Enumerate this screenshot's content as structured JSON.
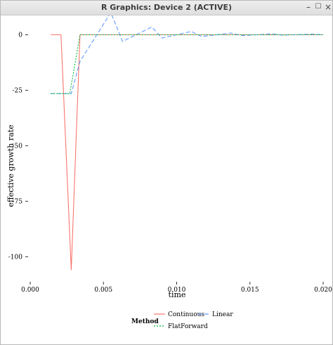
{
  "window": {
    "title": "R Graphics: Device 2 (ACTIVE)",
    "buttons": {
      "minimize": "–",
      "maximize": "☐",
      "close": "×"
    }
  },
  "chart_data": {
    "type": "line",
    "title": "",
    "xlabel": "time",
    "ylabel": "effective growth rate",
    "xlim": [
      0.0,
      0.02
    ],
    "ylim": [
      -110,
      3
    ],
    "grid": false,
    "legend_position": "bottom",
    "x_ticks": [
      0.0,
      0.005,
      0.01,
      0.015,
      0.02
    ],
    "x_tick_labels": [
      "0.000",
      "0.005",
      "0.010",
      "0.015",
      "0.020"
    ],
    "y_ticks": [
      0,
      -25,
      -50,
      -75,
      -100
    ],
    "y_tick_labels": [
      "0",
      "-25",
      "-50",
      "-75",
      "-100"
    ],
    "legend": {
      "title": "Method"
    },
    "series": [
      {
        "name": "Continuous",
        "color": "#f8766d",
        "dash": "solid",
        "x": [
          0.0014,
          0.0021,
          0.0028,
          0.0034,
          0.004,
          0.02
        ],
        "y": [
          0,
          0,
          -106,
          0,
          0,
          0
        ]
      },
      {
        "name": "Linear",
        "color": "#619cff",
        "dash": "longdash",
        "x": [
          0.0014,
          0.0028,
          0.0034,
          0.0055,
          0.0063,
          0.0083,
          0.009,
          0.011,
          0.0117,
          0.0137,
          0.0145,
          0.0165,
          0.0172,
          0.0193,
          0.02
        ],
        "y": [
          -26.5,
          -26.5,
          -12,
          10,
          -3,
          3.5,
          -1.5,
          1.5,
          -0.8,
          0.8,
          -0.4,
          0.4,
          -0.2,
          0.3,
          0
        ]
      },
      {
        "name": "FlatForward",
        "color": "#00ba38",
        "dash": "dotted",
        "x": [
          0.0014,
          0.0027,
          0.0034,
          0.02
        ],
        "y": [
          -26.5,
          -26.5,
          0,
          0
        ]
      }
    ]
  }
}
